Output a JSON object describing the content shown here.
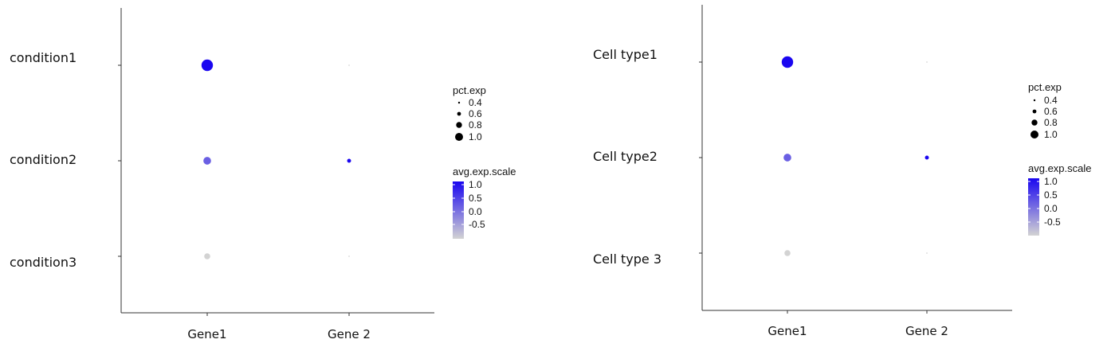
{
  "chart_data": [
    {
      "type": "dot",
      "x_categories": [
        "Gene1",
        "Gene 2"
      ],
      "y_categories": [
        "condition1",
        "condition2",
        "condition3"
      ],
      "points": [
        {
          "x": "Gene1",
          "y": "condition1",
          "pct_exp": 1.0,
          "avg_exp_scale": 1.15
        },
        {
          "x": "Gene 2",
          "y": "condition1",
          "pct_exp": 0.3,
          "avg_exp_scale": -0.7
        },
        {
          "x": "Gene1",
          "y": "condition2",
          "pct_exp": 0.8,
          "avg_exp_scale": 0.35
        },
        {
          "x": "Gene 2",
          "y": "condition2",
          "pct_exp": 0.55,
          "avg_exp_scale": 1.15
        },
        {
          "x": "Gene1",
          "y": "condition3",
          "pct_exp": 0.7,
          "avg_exp_scale": -0.7
        },
        {
          "x": "Gene 2",
          "y": "condition3",
          "pct_exp": 0.3,
          "avg_exp_scale": -0.7
        }
      ],
      "legend_size": {
        "title": "pct.exp",
        "values": [
          "0.4",
          "0.6",
          "0.8",
          "1.0"
        ]
      },
      "legend_color": {
        "title": "avg.exp.scale",
        "values": [
          "1.0",
          "0.5",
          "0.0",
          "-0.5"
        ],
        "low": "#d3d3d3",
        "high": "#1a06f0"
      }
    },
    {
      "type": "dot",
      "x_categories": [
        "Gene1",
        "Gene 2"
      ],
      "y_categories": [
        "Cell type1",
        "Cell type2",
        "Cell type 3"
      ],
      "points": [
        {
          "x": "Gene1",
          "y": "Cell type1",
          "pct_exp": 1.0,
          "avg_exp_scale": 1.15
        },
        {
          "x": "Gene 2",
          "y": "Cell type1",
          "pct_exp": 0.3,
          "avg_exp_scale": -0.7
        },
        {
          "x": "Gene1",
          "y": "Cell type2",
          "pct_exp": 0.8,
          "avg_exp_scale": 0.35
        },
        {
          "x": "Gene 2",
          "y": "Cell type2",
          "pct_exp": 0.55,
          "avg_exp_scale": 1.15
        },
        {
          "x": "Gene1",
          "y": "Cell type 3",
          "pct_exp": 0.7,
          "avg_exp_scale": -0.7
        },
        {
          "x": "Gene 2",
          "y": "Cell type 3",
          "pct_exp": 0.3,
          "avg_exp_scale": -0.7
        }
      ],
      "legend_size": {
        "title": "pct.exp",
        "values": [
          "0.4",
          "0.6",
          "0.8",
          "1.0"
        ]
      },
      "legend_color": {
        "title": "avg.exp.scale",
        "values": [
          "1.0",
          "0.5",
          "0.0",
          "-0.5"
        ],
        "low": "#d3d3d3",
        "high": "#1a06f0"
      }
    }
  ]
}
